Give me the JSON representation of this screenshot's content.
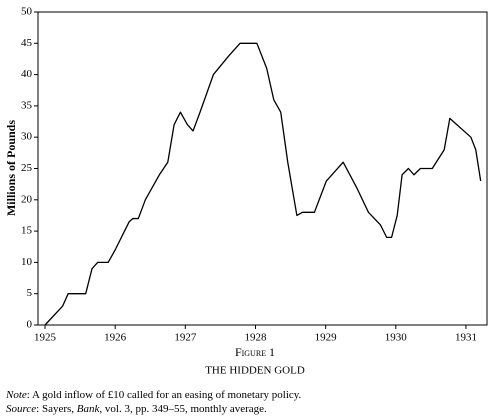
{
  "chart_data": {
    "type": "line",
    "y_label": "Millions of Pounds",
    "x": [
      1925.0,
      1925.25,
      1925.33,
      1925.58,
      1925.67,
      1925.75,
      1925.9,
      1926.0,
      1926.2,
      1926.25,
      1926.33,
      1926.43,
      1926.63,
      1926.75,
      1926.84,
      1926.93,
      1927.03,
      1927.11,
      1927.21,
      1927.4,
      1927.62,
      1927.78,
      1928.02,
      1928.16,
      1928.26,
      1928.36,
      1928.46,
      1928.59,
      1928.67,
      1928.84,
      1929.01,
      1929.25,
      1929.44,
      1929.61,
      1929.78,
      1929.87,
      1929.94,
      1930.02,
      1930.09,
      1930.18,
      1930.26,
      1930.35,
      1930.52,
      1930.69,
      1930.77,
      1930.97,
      1931.07,
      1931.14,
      1931.21
    ],
    "values": [
      0,
      3,
      5,
      5,
      9,
      10,
      10,
      12,
      16.5,
      17,
      17,
      20,
      24,
      26,
      32,
      34,
      32,
      31,
      34,
      40,
      43,
      45,
      45,
      41,
      36,
      34,
      26,
      17.5,
      18,
      18,
      23,
      26,
      22,
      18,
      16,
      14,
      14,
      17.5,
      24,
      25,
      24,
      25,
      25,
      28,
      33,
      31,
      30,
      28,
      23
    ],
    "color": "#000000",
    "xlim": [
      1924.9,
      1931.3
    ],
    "xticks": [
      1925,
      1926,
      1927,
      1928,
      1929,
      1930,
      1931
    ],
    "ylim": [
      0,
      50
    ],
    "yticks": [
      0,
      5,
      10,
      15,
      20,
      25,
      30,
      35,
      40,
      45,
      50
    ],
    "grid": false
  },
  "caption": {
    "figure": "Figure 1",
    "title": "THE HIDDEN GOLD",
    "note_label": "Note",
    "note": ": A gold inflow of £10 called for an easing of monetary policy.",
    "source_label": "Source",
    "source_a": ": Sayers, ",
    "source_book": "Bank",
    "source_b": ", vol. 3, pp. 349–55, monthly average."
  }
}
